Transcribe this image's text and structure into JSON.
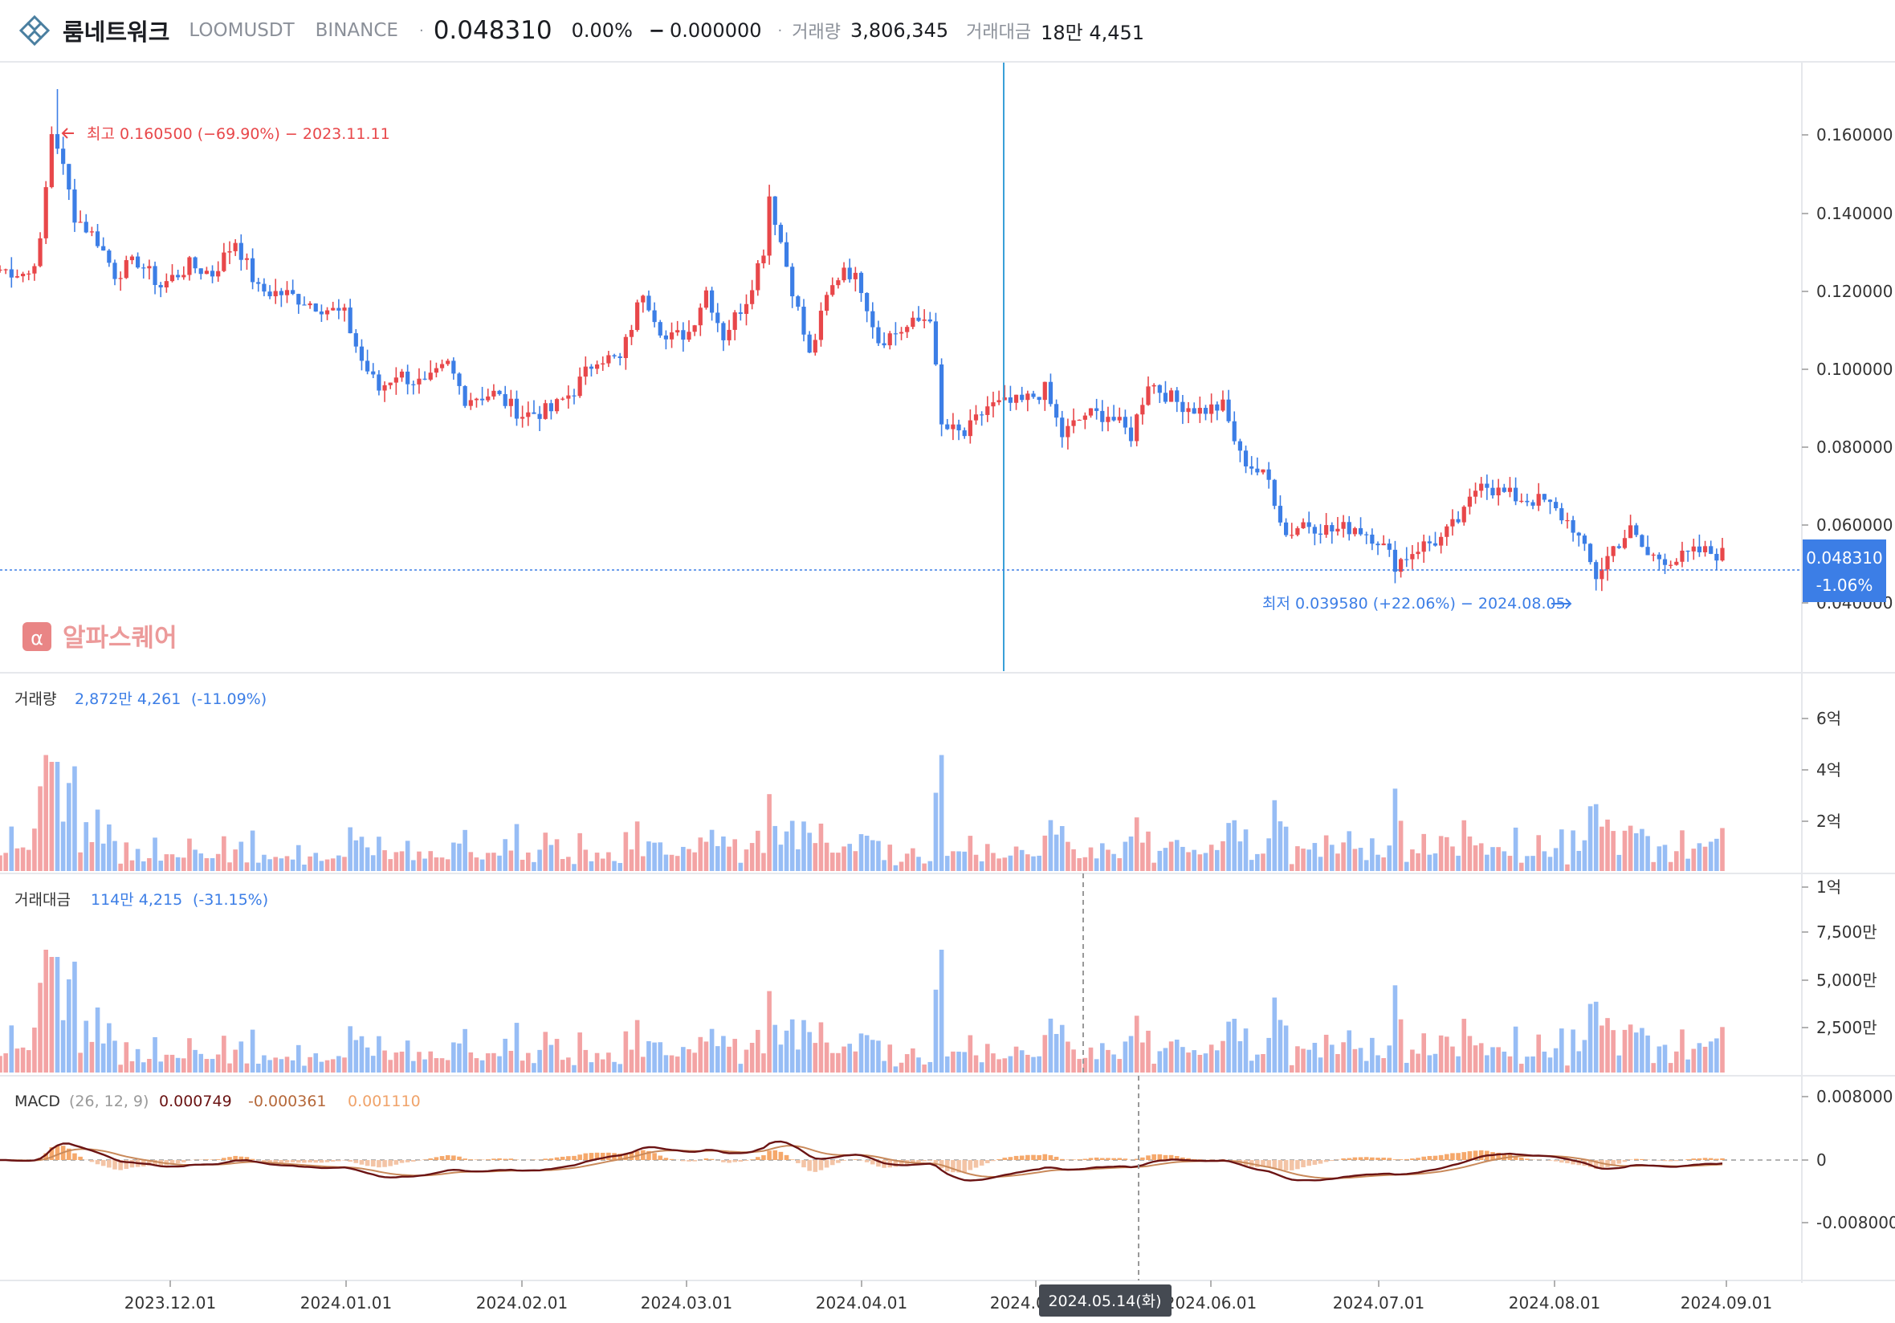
{
  "header": {
    "name": "룸네트워크",
    "symbol": "LOOMUSDT",
    "exchange": "BINANCE",
    "price": "0.048310",
    "change_pct": "0.00%",
    "change_abs": "0.000000",
    "volume_label": "거래량",
    "volume_value": "3,806,345",
    "value_label": "거래대금",
    "value_value": "18만 4,451"
  },
  "colors": {
    "up": "#e8474a",
    "down": "#3c7ee6",
    "up_bar": "#f3a3a4",
    "down_bar": "#97bdf5",
    "macd": "#6b1414",
    "signal": "#c9895a",
    "hist": "#f5a86b"
  },
  "watermark": "알파스퀘어",
  "chart_data": [
    {
      "type": "candlestick",
      "x_start": "2023-11-01",
      "x_end": "2024-08-27",
      "ylim": [
        0.026,
        0.18
      ],
      "y_ticks": [
        "0.160000",
        "0.140000",
        "0.120000",
        "0.100000",
        "0.080000",
        "0.060000",
        "0.040000"
      ],
      "x_ticks": [
        "2023.12.01",
        "2024.01.01",
        "2024.02.01",
        "2024.03.01",
        "2024.04.01",
        "2024.05.01",
        "2024.06.01",
        "2024.07.01",
        "2024.08.01",
        "2024.09.01"
      ],
      "close_path": [
        [
          "2023-11-01",
          0.117
        ],
        [
          "2023-11-06",
          0.116
        ],
        [
          "2023-11-08",
          0.123
        ],
        [
          "2023-11-10",
          0.15
        ],
        [
          "2023-11-11",
          0.147
        ],
        [
          "2023-11-14",
          0.13
        ],
        [
          "2023-11-18",
          0.124
        ],
        [
          "2023-11-21",
          0.116
        ],
        [
          "2023-11-25",
          0.119
        ],
        [
          "2023-11-29",
          0.113
        ],
        [
          "2023-12-04",
          0.118
        ],
        [
          "2023-12-08",
          0.116
        ],
        [
          "2023-12-12",
          0.124
        ],
        [
          "2023-12-16",
          0.112
        ],
        [
          "2023-12-21",
          0.111
        ],
        [
          "2023-12-25",
          0.109
        ],
        [
          "2023-12-31",
          0.106
        ],
        [
          "2024-01-03",
          0.095
        ],
        [
          "2024-01-06",
          0.088
        ],
        [
          "2024-01-09",
          0.092
        ],
        [
          "2024-01-14",
          0.089
        ],
        [
          "2024-01-18",
          0.094
        ],
        [
          "2024-01-21",
          0.086
        ],
        [
          "2024-01-26",
          0.087
        ],
        [
          "2024-01-31",
          0.082
        ],
        [
          "2024-02-05",
          0.083
        ],
        [
          "2024-02-09",
          0.088
        ],
        [
          "2024-02-13",
          0.096
        ],
        [
          "2024-02-17",
          0.095
        ],
        [
          "2024-02-21",
          0.112
        ],
        [
          "2024-02-25",
          0.1
        ],
        [
          "2024-02-29",
          0.102
        ],
        [
          "2024-03-03",
          0.112
        ],
        [
          "2024-03-06",
          0.101
        ],
        [
          "2024-03-10",
          0.11
        ],
        [
          "2024-03-13",
          0.122
        ],
        [
          "2024-03-14",
          0.135
        ],
        [
          "2024-03-17",
          0.118
        ],
        [
          "2024-03-21",
          0.096
        ],
        [
          "2024-03-24",
          0.11
        ],
        [
          "2024-03-27",
          0.118
        ],
        [
          "2024-03-30",
          0.113
        ],
        [
          "2024-04-02",
          0.1
        ],
        [
          "2024-04-07",
          0.103
        ],
        [
          "2024-04-11",
          0.106
        ],
        [
          "2024-04-13",
          0.079
        ],
        [
          "2024-04-17",
          0.077
        ],
        [
          "2024-04-21",
          0.084
        ],
        [
          "2024-04-27",
          0.085
        ],
        [
          "2024-05-01",
          0.088
        ],
        [
          "2024-05-04",
          0.077
        ],
        [
          "2024-05-08",
          0.082
        ],
        [
          "2024-05-12",
          0.082
        ],
        [
          "2024-05-16",
          0.077
        ],
        [
          "2024-05-19",
          0.09
        ],
        [
          "2024-05-24",
          0.085
        ],
        [
          "2024-05-28",
          0.083
        ],
        [
          "2024-06-01",
          0.084
        ],
        [
          "2024-06-04",
          0.072
        ],
        [
          "2024-06-09",
          0.066
        ],
        [
          "2024-06-12",
          0.053
        ],
        [
          "2024-06-15",
          0.056
        ],
        [
          "2024-06-20",
          0.054
        ],
        [
          "2024-06-24",
          0.055
        ],
        [
          "2024-06-28",
          0.052
        ],
        [
          "2024-07-01",
          0.046
        ],
        [
          "2024-07-05",
          0.05
        ],
        [
          "2024-07-09",
          0.052
        ],
        [
          "2024-07-13",
          0.058
        ],
        [
          "2024-07-16",
          0.067
        ],
        [
          "2024-07-18",
          0.064
        ],
        [
          "2024-07-22",
          0.062
        ],
        [
          "2024-07-27",
          0.061
        ],
        [
          "2024-08-01",
          0.055
        ],
        [
          "2024-08-05",
          0.043
        ],
        [
          "2024-08-08",
          0.05
        ],
        [
          "2024-08-11",
          0.054
        ],
        [
          "2024-08-14",
          0.048
        ],
        [
          "2024-08-19",
          0.047
        ],
        [
          "2024-08-23",
          0.049
        ],
        [
          "2024-08-27",
          0.0483
        ]
      ],
      "annotations": [
        {
          "text": "최고 0.160500 (−69.90%) − 2023.11.11",
          "date": "2023-11-11",
          "value": 0.1605
        },
        {
          "text": "최저 0.039580 (+22.06%) − 2024.08.05",
          "date": "2024-08-05",
          "value": 0.03958
        }
      ],
      "last_price_label": "0.048310",
      "last_change_label": "-1.06%",
      "crosshair_date": "2024-05-14",
      "crosshair_label": "2024.05.14(화)",
      "hidden_tick_label": "2024.05.01"
    },
    {
      "type": "bar",
      "title": "거래량",
      "value_text": "2,872만 4,261",
      "change_text": "(-11.09%)",
      "y_ticks": [
        "6억",
        "4억",
        "2억"
      ]
    },
    {
      "type": "bar",
      "title": "거래대금",
      "value_text": "114만 4,215",
      "change_text": "(-31.15%)",
      "y_ticks": [
        "1억",
        "7,500만",
        "5,000만",
        "2,500만"
      ]
    },
    {
      "type": "line",
      "title": "MACD",
      "params": "(26, 12, 9)",
      "macd_text": "0.000749",
      "signal_text": "-0.000361",
      "hist_text": "0.001110",
      "y_ticks": [
        "0.008000",
        "0",
        "-0.008000"
      ]
    }
  ]
}
